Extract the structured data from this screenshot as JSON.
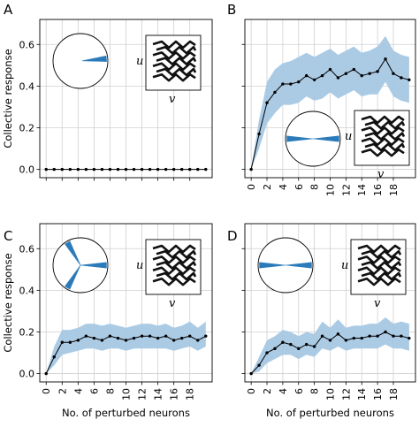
{
  "figure": {
    "panel_letters": [
      "A",
      "B",
      "C",
      "D"
    ],
    "ylabel": "Collective response",
    "xlabel": "No. of perturbed neurons",
    "colors": {
      "band": "#a7c8e4",
      "line": "#000000",
      "grid": "#d0d0d0",
      "arrow": "#2b7bba"
    },
    "inset_u": "u",
    "inset_v": "v"
  },
  "chart_data": [
    {
      "type": "line",
      "panel": "A",
      "x": [
        0,
        1,
        2,
        3,
        4,
        5,
        6,
        7,
        8,
        9,
        10,
        11,
        12,
        13,
        14,
        15,
        16,
        17,
        18,
        19,
        20
      ],
      "values": [
        0,
        0,
        0,
        0,
        0,
        0,
        0,
        0,
        0,
        0,
        0,
        0,
        0,
        0,
        0,
        0,
        0,
        0,
        0,
        0,
        0
      ],
      "lower": [
        0,
        0,
        0,
        0,
        0,
        0,
        0,
        0,
        0,
        0,
        0,
        0,
        0,
        0,
        0,
        0,
        0,
        0,
        0,
        0,
        0
      ],
      "upper": [
        0,
        0,
        0,
        0,
        0,
        0,
        0,
        0,
        0,
        0,
        0,
        0,
        0,
        0,
        0,
        0,
        0,
        0,
        0,
        0,
        0
      ],
      "xticks": [
        0,
        2,
        4,
        6,
        8,
        10,
        12,
        14,
        16,
        18
      ],
      "yticks": [
        0.0,
        0.2,
        0.4,
        0.6
      ],
      "ylim": [
        -0.04,
        0.72
      ],
      "xlim": [
        -0.8,
        20.8
      ],
      "grid": true,
      "inset_arrows": 1,
      "arrow_dirs_deg": [
        5
      ],
      "ylabel_shown": true,
      "xticklabels_shown": false,
      "yticklabels_shown": true
    },
    {
      "type": "line",
      "panel": "B",
      "x": [
        0,
        1,
        2,
        3,
        4,
        5,
        6,
        7,
        8,
        9,
        10,
        11,
        12,
        13,
        14,
        15,
        16,
        17,
        18,
        19,
        20
      ],
      "values": [
        0,
        0.17,
        0.32,
        0.37,
        0.41,
        0.41,
        0.42,
        0.45,
        0.43,
        0.45,
        0.48,
        0.44,
        0.46,
        0.48,
        0.45,
        0.46,
        0.47,
        0.53,
        0.46,
        0.44,
        0.43
      ],
      "lower": [
        0,
        0.1,
        0.22,
        0.27,
        0.31,
        0.31,
        0.32,
        0.35,
        0.33,
        0.34,
        0.37,
        0.34,
        0.36,
        0.38,
        0.35,
        0.36,
        0.36,
        0.42,
        0.35,
        0.33,
        0.32
      ],
      "upper": [
        0,
        0.24,
        0.42,
        0.48,
        0.51,
        0.52,
        0.54,
        0.56,
        0.54,
        0.56,
        0.58,
        0.55,
        0.57,
        0.59,
        0.56,
        0.57,
        0.59,
        0.64,
        0.57,
        0.55,
        0.54
      ],
      "xticks": [
        0,
        2,
        4,
        6,
        8,
        10,
        12,
        14,
        16,
        18
      ],
      "yticks": [
        0.0,
        0.2,
        0.4,
        0.6
      ],
      "ylim": [
        -0.04,
        0.72
      ],
      "xlim": [
        -0.8,
        20.8
      ],
      "grid": true,
      "inset_arrows": 2,
      "arrow_dirs_deg": [
        0,
        180
      ],
      "ylabel_shown": false,
      "xticklabels_shown": true,
      "yticklabels_shown": false
    },
    {
      "type": "line",
      "panel": "C",
      "x": [
        0,
        1,
        2,
        3,
        4,
        5,
        6,
        7,
        8,
        9,
        10,
        11,
        12,
        13,
        14,
        15,
        16,
        17,
        18,
        19,
        20
      ],
      "values": [
        0,
        0.08,
        0.15,
        0.15,
        0.16,
        0.18,
        0.17,
        0.16,
        0.18,
        0.17,
        0.16,
        0.17,
        0.18,
        0.18,
        0.17,
        0.18,
        0.16,
        0.17,
        0.18,
        0.16,
        0.18
      ],
      "lower": [
        0,
        0.04,
        0.09,
        0.1,
        0.11,
        0.12,
        0.12,
        0.11,
        0.12,
        0.12,
        0.11,
        0.12,
        0.12,
        0.12,
        0.12,
        0.12,
        0.11,
        0.12,
        0.13,
        0.11,
        0.13
      ],
      "upper": [
        0,
        0.13,
        0.21,
        0.21,
        0.22,
        0.24,
        0.24,
        0.23,
        0.24,
        0.23,
        0.22,
        0.23,
        0.24,
        0.24,
        0.23,
        0.24,
        0.22,
        0.23,
        0.25,
        0.22,
        0.25
      ],
      "xticks": [
        0,
        2,
        4,
        6,
        8,
        10,
        12,
        14,
        16,
        18
      ],
      "yticks": [
        0.0,
        0.2,
        0.4,
        0.6
      ],
      "ylim": [
        -0.04,
        0.72
      ],
      "xlim": [
        -0.8,
        20.8
      ],
      "grid": true,
      "inset_arrows": 3,
      "arrow_dirs_deg": [
        0,
        120,
        240
      ],
      "ylabel_shown": true,
      "xticklabels_shown": true,
      "yticklabels_shown": true
    },
    {
      "type": "line",
      "panel": "D",
      "x": [
        0,
        1,
        2,
        3,
        4,
        5,
        6,
        7,
        8,
        9,
        10,
        11,
        12,
        13,
        14,
        15,
        16,
        17,
        18,
        19,
        20
      ],
      "values": [
        0,
        0.04,
        0.1,
        0.12,
        0.15,
        0.14,
        0.12,
        0.14,
        0.13,
        0.18,
        0.16,
        0.19,
        0.16,
        0.17,
        0.17,
        0.18,
        0.18,
        0.2,
        0.18,
        0.18,
        0.17
      ],
      "lower": [
        0,
        0.01,
        0.05,
        0.07,
        0.09,
        0.09,
        0.07,
        0.09,
        0.08,
        0.12,
        0.11,
        0.13,
        0.11,
        0.12,
        0.12,
        0.12,
        0.12,
        0.14,
        0.12,
        0.12,
        0.11
      ],
      "upper": [
        0,
        0.08,
        0.16,
        0.18,
        0.21,
        0.2,
        0.18,
        0.2,
        0.19,
        0.25,
        0.22,
        0.26,
        0.22,
        0.23,
        0.23,
        0.24,
        0.24,
        0.27,
        0.24,
        0.25,
        0.24
      ],
      "xticks": [
        0,
        2,
        4,
        6,
        8,
        10,
        12,
        14,
        16,
        18
      ],
      "yticks": [
        0.0,
        0.2,
        0.4,
        0.6
      ],
      "ylim": [
        -0.04,
        0.72
      ],
      "xlim": [
        -0.8,
        20.8
      ],
      "grid": true,
      "inset_arrows": 2,
      "arrow_dirs_deg": [
        0,
        180
      ],
      "ylabel_shown": false,
      "xticklabels_shown": true,
      "yticklabels_shown": false
    }
  ]
}
